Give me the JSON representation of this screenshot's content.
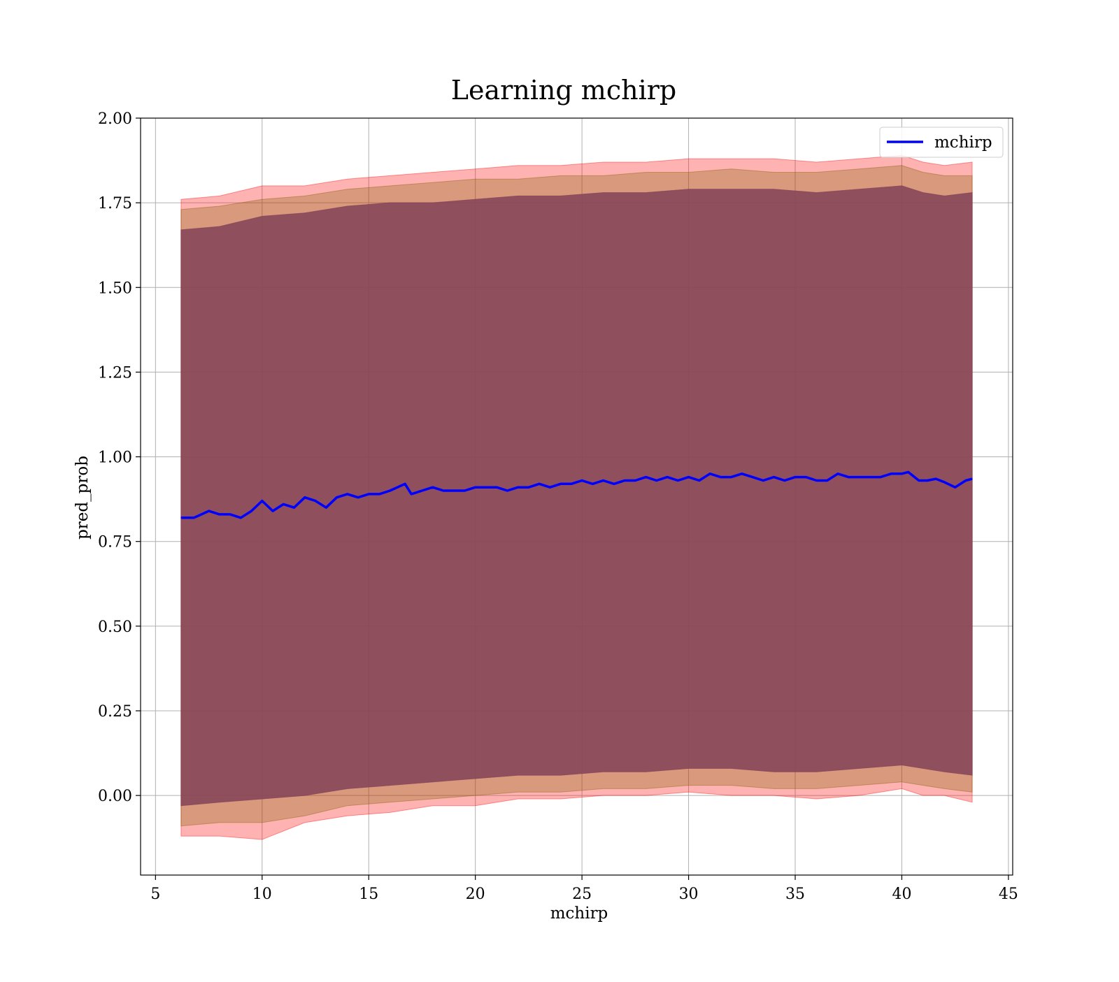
{
  "chart_data": {
    "type": "line",
    "title": "Learning mchirp",
    "xlabel": "mchirp",
    "ylabel": "pred_prob",
    "xlim": [
      4.3,
      45.2
    ],
    "ylim": [
      -0.235,
      2.0
    ],
    "xticks": [
      5,
      10,
      15,
      20,
      25,
      30,
      35,
      40,
      45
    ],
    "xtick_labels": [
      "5",
      "10",
      "15",
      "20",
      "25",
      "30",
      "35",
      "40",
      "45"
    ],
    "yticks": [
      0.0,
      0.25,
      0.5,
      0.75,
      1.0,
      1.25,
      1.5,
      1.75,
      2.0
    ],
    "ytick_labels": [
      "0.00",
      "0.25",
      "0.50",
      "0.75",
      "1.00",
      "1.25",
      "1.50",
      "1.75",
      "2.00"
    ],
    "grid": true,
    "legend": {
      "position": "top-right",
      "entries": [
        "mchirp"
      ]
    },
    "series": [
      {
        "name": "mchirp",
        "color": "#0000ff",
        "x": [
          6.2,
          6.8,
          7.5,
          8.0,
          8.5,
          9.0,
          9.5,
          10.0,
          10.5,
          11.0,
          11.5,
          12.0,
          12.5,
          13.0,
          13.5,
          14.0,
          14.5,
          15.0,
          15.5,
          16.0,
          16.7,
          17.0,
          17.5,
          18.0,
          18.5,
          19.0,
          19.5,
          20.0,
          20.5,
          21.0,
          21.5,
          22.0,
          22.5,
          23.0,
          23.5,
          24.0,
          24.5,
          25.0,
          25.5,
          26.0,
          26.5,
          27.0,
          27.5,
          28.0,
          28.5,
          29.0,
          29.5,
          30.0,
          30.5,
          31.0,
          31.5,
          32.0,
          32.5,
          33.0,
          33.5,
          34.0,
          34.5,
          35.0,
          35.5,
          36.0,
          36.5,
          37.0,
          37.5,
          38.0,
          38.5,
          39.0,
          39.5,
          40.0,
          40.3,
          40.8,
          41.2,
          41.6,
          42.0,
          42.5,
          43.0,
          43.3
        ],
        "y": [
          0.82,
          0.82,
          0.84,
          0.83,
          0.83,
          0.82,
          0.84,
          0.87,
          0.84,
          0.86,
          0.85,
          0.88,
          0.87,
          0.85,
          0.88,
          0.89,
          0.88,
          0.89,
          0.89,
          0.9,
          0.92,
          0.89,
          0.9,
          0.91,
          0.9,
          0.9,
          0.9,
          0.91,
          0.91,
          0.91,
          0.9,
          0.91,
          0.91,
          0.92,
          0.91,
          0.92,
          0.92,
          0.93,
          0.92,
          0.93,
          0.92,
          0.93,
          0.93,
          0.94,
          0.93,
          0.94,
          0.93,
          0.94,
          0.93,
          0.95,
          0.94,
          0.94,
          0.95,
          0.94,
          0.93,
          0.94,
          0.93,
          0.94,
          0.94,
          0.93,
          0.93,
          0.95,
          0.94,
          0.94,
          0.94,
          0.94,
          0.95,
          0.95,
          0.955,
          0.93,
          0.93,
          0.935,
          0.925,
          0.91,
          0.93,
          0.935
        ]
      }
    ],
    "bands": [
      {
        "color": "#ff0000",
        "alpha": 0.3,
        "x": [
          6.2,
          8.0,
          10.0,
          12.0,
          14.0,
          16.0,
          18.0,
          20.0,
          22.0,
          24.0,
          26.0,
          28.0,
          30.0,
          32.0,
          34.0,
          36.0,
          38.0,
          40.0,
          41.0,
          42.0,
          43.3
        ],
        "upper": [
          1.76,
          1.77,
          1.8,
          1.8,
          1.82,
          1.83,
          1.84,
          1.85,
          1.86,
          1.86,
          1.87,
          1.87,
          1.88,
          1.88,
          1.88,
          1.87,
          1.88,
          1.89,
          1.87,
          1.86,
          1.87
        ],
        "lower": [
          -0.12,
          -0.12,
          -0.13,
          -0.08,
          -0.06,
          -0.05,
          -0.03,
          -0.03,
          -0.01,
          -0.01,
          0.0,
          0.0,
          0.01,
          0.0,
          0.0,
          -0.01,
          0.0,
          0.02,
          0.0,
          0.0,
          -0.02
        ]
      },
      {
        "color": "#7f6000",
        "alpha": 0.3,
        "x": [
          6.2,
          8.0,
          10.0,
          12.0,
          14.0,
          16.0,
          18.0,
          20.0,
          22.0,
          24.0,
          26.0,
          28.0,
          30.0,
          32.0,
          34.0,
          36.0,
          38.0,
          40.0,
          41.0,
          42.0,
          43.3
        ],
        "upper": [
          1.73,
          1.74,
          1.76,
          1.77,
          1.79,
          1.8,
          1.81,
          1.82,
          1.82,
          1.83,
          1.83,
          1.84,
          1.84,
          1.85,
          1.84,
          1.84,
          1.85,
          1.86,
          1.84,
          1.83,
          1.83
        ],
        "lower": [
          -0.09,
          -0.08,
          -0.08,
          -0.06,
          -0.03,
          -0.02,
          -0.01,
          0.0,
          0.01,
          0.01,
          0.02,
          0.02,
          0.03,
          0.03,
          0.02,
          0.02,
          0.03,
          0.04,
          0.03,
          0.02,
          0.01
        ]
      },
      {
        "color": "#4b0050",
        "alpha": 0.3,
        "x": [
          6.2,
          8.0,
          10.0,
          12.0,
          14.0,
          16.0,
          18.0,
          20.0,
          22.0,
          24.0,
          26.0,
          28.0,
          30.0,
          32.0,
          34.0,
          36.0,
          38.0,
          40.0,
          41.0,
          42.0,
          43.3
        ],
        "upper": [
          1.67,
          1.68,
          1.71,
          1.72,
          1.74,
          1.75,
          1.75,
          1.76,
          1.77,
          1.77,
          1.78,
          1.78,
          1.79,
          1.79,
          1.79,
          1.78,
          1.79,
          1.8,
          1.78,
          1.77,
          1.78
        ],
        "lower": [
          -0.03,
          -0.02,
          -0.01,
          0.0,
          0.02,
          0.03,
          0.04,
          0.05,
          0.06,
          0.06,
          0.07,
          0.07,
          0.08,
          0.08,
          0.07,
          0.07,
          0.08,
          0.09,
          0.08,
          0.07,
          0.06
        ]
      },
      {
        "color": "#8b4a5a",
        "alpha": 0.85,
        "x": [
          6.2,
          8.0,
          10.0,
          12.0,
          14.0,
          16.0,
          18.0,
          20.0,
          22.0,
          24.0,
          26.0,
          28.0,
          30.0,
          32.0,
          34.0,
          36.0,
          38.0,
          40.0,
          41.0,
          42.0,
          43.3
        ],
        "upper": [
          1.67,
          1.68,
          1.71,
          1.72,
          1.74,
          1.75,
          1.75,
          1.76,
          1.77,
          1.77,
          1.78,
          1.78,
          1.79,
          1.79,
          1.79,
          1.78,
          1.79,
          1.8,
          1.78,
          1.77,
          1.78
        ],
        "lower": [
          -0.03,
          -0.02,
          -0.01,
          0.0,
          0.02,
          0.03,
          0.04,
          0.05,
          0.06,
          0.06,
          0.07,
          0.07,
          0.08,
          0.08,
          0.07,
          0.07,
          0.08,
          0.09,
          0.08,
          0.07,
          0.06
        ]
      }
    ]
  }
}
